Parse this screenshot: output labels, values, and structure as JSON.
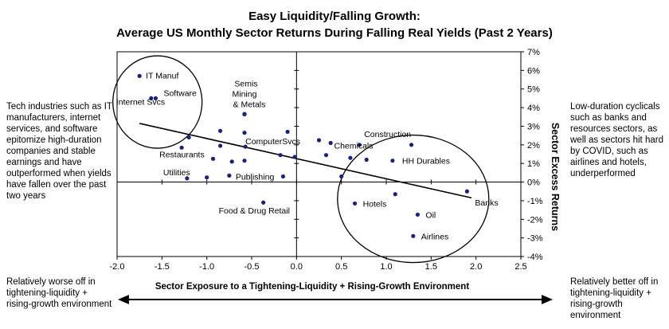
{
  "chart_data": {
    "type": "scatter",
    "title": "Easy Liquidity/Falling Growth:",
    "subtitle": "Average US Monthly Sector Returns During Falling Real Yields (Past 2 Years)",
    "xlabel": "Sector Exposure to a Tightening-Liquidity + Rising-Growth Environment",
    "ylabel": "Sector Excess Returns",
    "xlim": [
      -2.0,
      2.5
    ],
    "ylim": [
      -4,
      7
    ],
    "x_ticks": [
      "-2.0",
      "-1.5",
      "-1.0",
      "-0.5",
      "0.0",
      "0.5",
      "1.0",
      "1.5",
      "2.0",
      "2.5"
    ],
    "y_ticks": [
      "-4%",
      "-3%",
      "-2%",
      "-1%",
      "0%",
      "1%",
      "2%",
      "3%",
      "4%",
      "5%",
      "6%",
      "7%"
    ],
    "y_axis_position": "right",
    "grid": false,
    "points": [
      {
        "label": "IT Manuf",
        "x": -1.75,
        "y": 5.7
      },
      {
        "label": "Software",
        "x": -1.57,
        "y": 4.5
      },
      {
        "label": "Internet Svcs",
        "x": -1.62,
        "y": 4.5
      },
      {
        "label": "Semis",
        "x": -0.58,
        "y": 3.65
      },
      {
        "label": "Mining",
        "x": -0.58,
        "y": 3.65
      },
      {
        "label": "& Metals",
        "x": -0.58,
        "y": 3.65
      },
      {
        "label": "",
        "x": -1.2,
        "y": 2.4
      },
      {
        "label": "",
        "x": -0.85,
        "y": 2.75
      },
      {
        "label": "",
        "x": -0.58,
        "y": 2.65
      },
      {
        "label": "",
        "x": -0.1,
        "y": 2.7
      },
      {
        "label": "Restaurants",
        "x": -1.28,
        "y": 1.85
      },
      {
        "label": "",
        "x": -0.85,
        "y": 1.95
      },
      {
        "label": "ComputerSvcs",
        "x": -0.57,
        "y": 1.9
      },
      {
        "label": "",
        "x": -0.93,
        "y": 1.25
      },
      {
        "label": "",
        "x": -0.72,
        "y": 1.1
      },
      {
        "label": "",
        "x": -0.58,
        "y": 1.15
      },
      {
        "label": "",
        "x": -0.18,
        "y": 1.45
      },
      {
        "label": "",
        "x": -0.02,
        "y": 1.35
      },
      {
        "label": "",
        "x": 0.25,
        "y": 2.25
      },
      {
        "label": "",
        "x": 0.38,
        "y": 2.1
      },
      {
        "label": "Construction",
        "x": 0.7,
        "y": 2.0
      },
      {
        "label": "",
        "x": 1.28,
        "y": 2.0
      },
      {
        "label": "Chemicals",
        "x": 0.33,
        "y": 1.45
      },
      {
        "label": "",
        "x": 0.6,
        "y": 1.3
      },
      {
        "label": "",
        "x": 0.78,
        "y": 1.2
      },
      {
        "label": "HH Durables",
        "x": 1.07,
        "y": 1.15
      },
      {
        "label": "Utilities",
        "x": -1.22,
        "y": 0.2
      },
      {
        "label": "",
        "x": -1.0,
        "y": 0.25
      },
      {
        "label": "Publishing",
        "x": -0.75,
        "y": 0.35
      },
      {
        "label": "",
        "x": -0.15,
        "y": 0.3
      },
      {
        "label": "",
        "x": 0.5,
        "y": 0.3
      },
      {
        "label": "Food & Drug Retail",
        "x": -0.37,
        "y": -1.1
      },
      {
        "label": "Hotels",
        "x": 0.65,
        "y": -1.15
      },
      {
        "label": "",
        "x": 1.1,
        "y": -0.65
      },
      {
        "label": "Banks",
        "x": 1.9,
        "y": -0.5
      },
      {
        "label": "Oil",
        "x": 1.35,
        "y": -1.75
      },
      {
        "label": "Airlines",
        "x": 1.3,
        "y": -2.9
      }
    ],
    "trend_line": {
      "x": [
        -1.75,
        1.95
      ],
      "y": [
        3.15,
        -0.85
      ]
    },
    "annotations": [
      {
        "text": "Tech industries such as IT manufacturers, internet services, and software epitomize high-duration companies and stable earnings and have outperformed when yields have fallen over the past two years",
        "position": "left"
      },
      {
        "text": "Low-duration cyclicals such as banks and resources sectors, as well as sectors hit hard by COVID, such as airlines and hotels, underperformed",
        "position": "right"
      },
      {
        "text": "Relatively worse off in tightening-liquidity + rising-growth environment",
        "position": "bottom-left"
      },
      {
        "text": "Relatively better off in tightening-liquidity + rising-growth environment",
        "position": "bottom-right"
      }
    ],
    "color": "#1f1f7a"
  }
}
